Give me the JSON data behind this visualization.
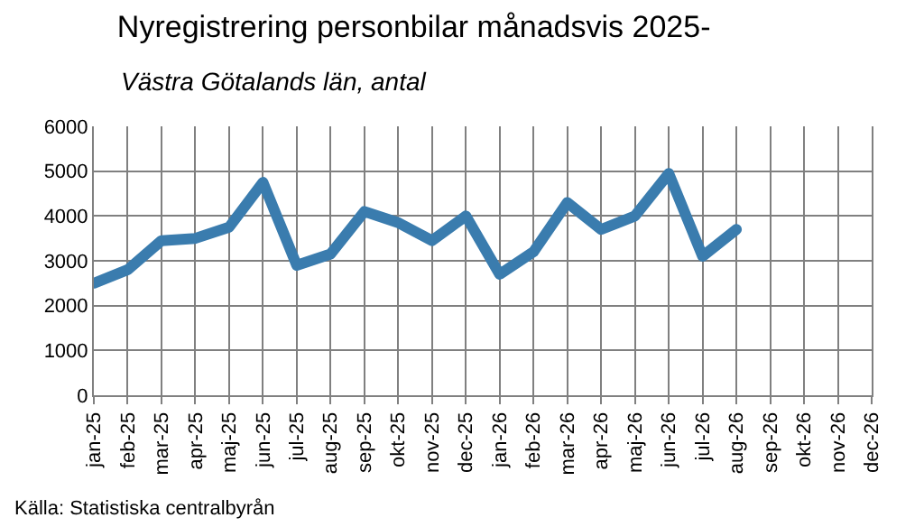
{
  "chart_data": {
    "type": "line",
    "title": "Nyregistrering personbilar månadsvis 2025-",
    "subtitle": "Västra Götalands län, antal",
    "categories": [
      "jan-25",
      "feb-25",
      "mar-25",
      "apr-25",
      "maj-25",
      "jun-25",
      "jul-25",
      "aug-25",
      "sep-25",
      "okt-25",
      "nov-25",
      "dec-25",
      "jan-26",
      "feb-26",
      "mar-26",
      "apr-26",
      "maj-26",
      "jun-26",
      "jul-26",
      "aug-26",
      "sep-26",
      "okt-26",
      "nov-26",
      "dec-26"
    ],
    "series": [
      {
        "color": "#3a7cae",
        "values": [
          2500,
          2800,
          3450,
          3500,
          3750,
          4750,
          2900,
          3150,
          4100,
          3850,
          3450,
          4000,
          2700,
          3200,
          4300,
          3700,
          4000,
          4950,
          3100,
          3700,
          null,
          null,
          null,
          null
        ]
      }
    ],
    "ylim": [
      0,
      6000
    ],
    "yticks": [
      0,
      1000,
      2000,
      3000,
      4000,
      5000,
      6000
    ],
    "grid": true,
    "legend": false,
    "marker": "none",
    "line_style": "solid",
    "annotations": [
      "Källa: Statistiska centralbyrån"
    ]
  }
}
